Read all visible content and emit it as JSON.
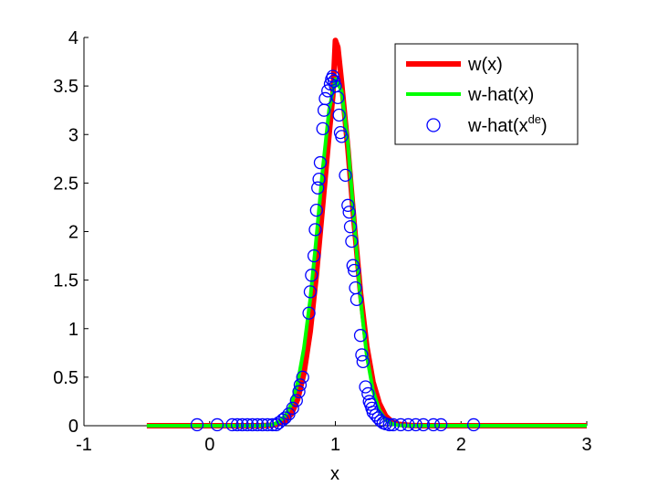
{
  "chart_data": {
    "type": "line",
    "title": "",
    "xlabel": "x",
    "ylabel": "",
    "xlim": [
      -1,
      3
    ],
    "ylim": [
      0,
      4
    ],
    "xticks": [
      -1,
      0,
      1,
      2,
      3
    ],
    "yticks": [
      0,
      0.5,
      1,
      1.5,
      2,
      2.5,
      3,
      3.5,
      4
    ],
    "xtick_labels": [
      "-1",
      "0",
      "1",
      "2",
      "3"
    ],
    "ytick_labels": [
      "0",
      "0.5",
      "1",
      "1.5",
      "2",
      "2.5",
      "3",
      "3.5",
      "4"
    ],
    "legend_position": "top-right",
    "series": [
      {
        "name": "w(x)",
        "kind": "line",
        "color": "#ff0000",
        "x_range": [
          -0.5,
          3
        ],
        "points": [
          [
            -0.5,
            0
          ],
          [
            0.4,
            0
          ],
          [
            0.5,
            0.005
          ],
          [
            0.55,
            0.02
          ],
          [
            0.6,
            0.05
          ],
          [
            0.65,
            0.12
          ],
          [
            0.7,
            0.27
          ],
          [
            0.75,
            0.54
          ],
          [
            0.8,
            0.97
          ],
          [
            0.85,
            1.57
          ],
          [
            0.9,
            2.28
          ],
          [
            0.95,
            3.0
          ],
          [
            0.98,
            3.4
          ],
          [
            1.0,
            3.97
          ],
          [
            1.02,
            3.9
          ],
          [
            1.05,
            3.53
          ],
          [
            1.1,
            2.85
          ],
          [
            1.15,
            2.08
          ],
          [
            1.2,
            1.37
          ],
          [
            1.25,
            0.82
          ],
          [
            1.3,
            0.45
          ],
          [
            1.35,
            0.23
          ],
          [
            1.4,
            0.1
          ],
          [
            1.45,
            0.04
          ],
          [
            1.5,
            0.015
          ],
          [
            1.6,
            0.002
          ],
          [
            1.7,
            0
          ],
          [
            3,
            0
          ]
        ]
      },
      {
        "name": "w-hat(x)",
        "kind": "line",
        "color": "#00ff00",
        "x_range": [
          -0.5,
          3
        ],
        "points": [
          [
            -0.5,
            0
          ],
          [
            0.4,
            0
          ],
          [
            0.5,
            0.01
          ],
          [
            0.55,
            0.04
          ],
          [
            0.6,
            0.1
          ],
          [
            0.65,
            0.22
          ],
          [
            0.7,
            0.44
          ],
          [
            0.75,
            0.8
          ],
          [
            0.8,
            1.3
          ],
          [
            0.85,
            1.95
          ],
          [
            0.9,
            2.65
          ],
          [
            0.95,
            3.25
          ],
          [
            1.0,
            3.57
          ],
          [
            1.05,
            3.45
          ],
          [
            1.1,
            2.9
          ],
          [
            1.15,
            2.1
          ],
          [
            1.2,
            1.3
          ],
          [
            1.25,
            0.72
          ],
          [
            1.3,
            0.36
          ],
          [
            1.35,
            0.16
          ],
          [
            1.4,
            0.06
          ],
          [
            1.45,
            0.02
          ],
          [
            1.5,
            0.005
          ],
          [
            1.6,
            0
          ],
          [
            3,
            0
          ]
        ]
      },
      {
        "name": "w-hat(x^de)",
        "label_main": "w-hat(x",
        "label_sup": "de",
        "label_close": ")",
        "kind": "scatter",
        "color": "#0000ff",
        "points": [
          [
            -0.1,
            0.01
          ],
          [
            0.06,
            0.01
          ],
          [
            0.18,
            0.01
          ],
          [
            0.22,
            0.01
          ],
          [
            0.26,
            0.01
          ],
          [
            0.3,
            0.01
          ],
          [
            0.34,
            0.01
          ],
          [
            0.38,
            0.01
          ],
          [
            0.42,
            0.01
          ],
          [
            0.46,
            0.01
          ],
          [
            0.5,
            0.01
          ],
          [
            0.53,
            0.01
          ],
          [
            0.55,
            0.03
          ],
          [
            0.58,
            0.06
          ],
          [
            0.6,
            0.08
          ],
          [
            0.63,
            0.12
          ],
          [
            0.66,
            0.18
          ],
          [
            0.69,
            0.26
          ],
          [
            0.71,
            0.35
          ],
          [
            0.72,
            0.42
          ],
          [
            0.74,
            0.5
          ],
          [
            0.79,
            1.16
          ],
          [
            0.8,
            1.38
          ],
          [
            0.81,
            1.55
          ],
          [
            0.83,
            1.75
          ],
          [
            0.84,
            2.02
          ],
          [
            0.85,
            2.22
          ],
          [
            0.86,
            2.45
          ],
          [
            0.87,
            2.54
          ],
          [
            0.88,
            2.71
          ],
          [
            0.9,
            3.06
          ],
          [
            0.91,
            3.25
          ],
          [
            0.92,
            3.37
          ],
          [
            0.94,
            3.45
          ],
          [
            0.96,
            3.52
          ],
          [
            0.97,
            3.57
          ],
          [
            0.98,
            3.6
          ],
          [
            0.99,
            3.55
          ],
          [
            1.0,
            3.5
          ],
          [
            1.02,
            3.38
          ],
          [
            1.03,
            3.2
          ],
          [
            1.04,
            3.02
          ],
          [
            1.05,
            2.98
          ],
          [
            1.08,
            2.58
          ],
          [
            1.1,
            2.27
          ],
          [
            1.11,
            2.2
          ],
          [
            1.12,
            2.05
          ],
          [
            1.13,
            1.9
          ],
          [
            1.14,
            1.65
          ],
          [
            1.15,
            1.6
          ],
          [
            1.16,
            1.42
          ],
          [
            1.17,
            1.3
          ],
          [
            1.2,
            0.93
          ],
          [
            1.21,
            0.73
          ],
          [
            1.22,
            0.66
          ],
          [
            1.24,
            0.4
          ],
          [
            1.26,
            0.33
          ],
          [
            1.27,
            0.25
          ],
          [
            1.28,
            0.22
          ],
          [
            1.29,
            0.18
          ],
          [
            1.3,
            0.14
          ],
          [
            1.32,
            0.11
          ],
          [
            1.34,
            0.08
          ],
          [
            1.36,
            0.05
          ],
          [
            1.38,
            0.03
          ],
          [
            1.4,
            0.02
          ],
          [
            1.43,
            0.01
          ],
          [
            1.46,
            0.01
          ],
          [
            1.52,
            0.01
          ],
          [
            1.58,
            0.01
          ],
          [
            1.64,
            0.01
          ],
          [
            1.7,
            0.01
          ],
          [
            1.78,
            0.01
          ],
          [
            1.84,
            0.01
          ],
          [
            2.1,
            0.01
          ]
        ]
      }
    ]
  }
}
